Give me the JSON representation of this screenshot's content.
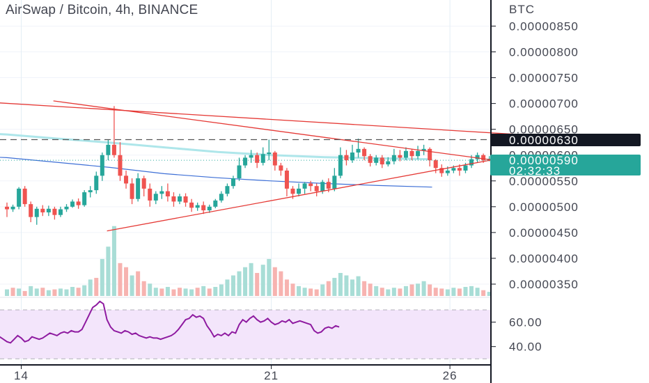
{
  "header": {
    "title": "AirSwap / Bitcoin, 4h, BINANCE"
  },
  "axis": {
    "unit": "BTC",
    "price_ticks": [
      "0.00000850",
      "0.00000800",
      "0.00000750",
      "0.00000700",
      "0.00000650",
      "0.00000600",
      "0.00000550",
      "0.00000500",
      "0.00000450",
      "0.00000400",
      "0.00000350"
    ],
    "rsi_ticks": [
      "60.00",
      "40.00"
    ],
    "date_ticks": [
      "14",
      "21",
      "26"
    ]
  },
  "tags": {
    "level_price": "0.00000630",
    "last_price": "0.00000590",
    "countdown": "02:32:33"
  },
  "colors": {
    "up": "#26a69a",
    "down": "#ef5350",
    "trendline": "#e53935",
    "ma_slow": "#aee6ea",
    "ma_fast": "#3d6fd6",
    "rsi_line": "#8e1aa0",
    "rsi_band": "#f3e5fb"
  },
  "chart_data": {
    "type": "candlestick",
    "price_range": [
      340,
      870
    ],
    "date_positions": [
      14,
      21,
      26
    ],
    "candles_start_date": 13.6,
    "candles_step_days": 0.1667,
    "candles": [
      [
        500,
        495,
        480,
        508
      ],
      [
        495,
        500,
        490,
        504
      ],
      [
        500,
        535,
        495,
        538
      ],
      [
        535,
        505,
        500,
        540
      ],
      [
        505,
        480,
        470,
        510
      ],
      [
        480,
        496,
        465,
        500
      ],
      [
        496,
        489,
        482,
        503
      ],
      [
        489,
        496,
        482,
        502
      ],
      [
        496,
        484,
        475,
        500
      ],
      [
        484,
        495,
        480,
        500
      ],
      [
        495,
        500,
        490,
        505
      ],
      [
        500,
        510,
        498,
        514
      ],
      [
        510,
        503,
        496,
        516
      ],
      [
        503,
        528,
        500,
        532
      ],
      [
        528,
        532,
        518,
        540
      ],
      [
        532,
        560,
        525,
        568
      ],
      [
        560,
        600,
        550,
        605
      ],
      [
        600,
        620,
        590,
        630
      ],
      [
        620,
        600,
        595,
        695
      ],
      [
        600,
        560,
        550,
        625
      ],
      [
        560,
        545,
        535,
        570
      ],
      [
        545,
        515,
        505,
        555
      ],
      [
        515,
        555,
        510,
        565
      ],
      [
        555,
        535,
        520,
        560
      ],
      [
        535,
        512,
        500,
        545
      ],
      [
        512,
        525,
        505,
        530
      ],
      [
        525,
        530,
        515,
        540
      ],
      [
        530,
        520,
        510,
        545
      ],
      [
        520,
        510,
        500,
        528
      ],
      [
        510,
        520,
        505,
        525
      ],
      [
        520,
        508,
        500,
        526
      ],
      [
        508,
        498,
        490,
        515
      ],
      [
        498,
        503,
        492,
        508
      ],
      [
        503,
        493,
        486,
        510
      ],
      [
        493,
        500,
        488,
        504
      ],
      [
        500,
        512,
        497,
        515
      ],
      [
        512,
        525,
        508,
        530
      ],
      [
        525,
        540,
        520,
        545
      ],
      [
        540,
        555,
        535,
        560
      ],
      [
        555,
        580,
        550,
        595
      ],
      [
        580,
        595,
        575,
        600
      ],
      [
        595,
        600,
        585,
        610
      ],
      [
        600,
        585,
        575,
        605
      ],
      [
        585,
        602,
        580,
        615
      ],
      [
        602,
        605,
        590,
        630
      ],
      [
        605,
        580,
        570,
        608
      ],
      [
        580,
        570,
        560,
        585
      ],
      [
        570,
        535,
        520,
        575
      ],
      [
        535,
        525,
        515,
        540
      ],
      [
        525,
        535,
        520,
        545
      ],
      [
        535,
        545,
        525,
        548
      ],
      [
        545,
        540,
        530,
        550
      ],
      [
        540,
        530,
        520,
        545
      ],
      [
        530,
        548,
        525,
        552
      ],
      [
        548,
        535,
        528,
        555
      ],
      [
        535,
        560,
        530,
        575
      ],
      [
        560,
        600,
        555,
        615
      ],
      [
        600,
        590,
        580,
        610
      ],
      [
        590,
        605,
        585,
        620
      ],
      [
        605,
        612,
        595,
        632
      ],
      [
        612,
        598,
        590,
        615
      ],
      [
        598,
        585,
        578,
        602
      ],
      [
        585,
        595,
        580,
        600
      ],
      [
        595,
        582,
        575,
        600
      ],
      [
        582,
        588,
        578,
        596
      ],
      [
        588,
        600,
        582,
        612
      ],
      [
        600,
        595,
        588,
        610
      ],
      [
        595,
        608,
        590,
        615
      ],
      [
        608,
        598,
        590,
        612
      ],
      [
        598,
        608,
        592,
        618
      ],
      [
        608,
        612,
        600,
        620
      ],
      [
        612,
        590,
        578,
        615
      ],
      [
        590,
        575,
        565,
        592
      ],
      [
        575,
        565,
        558,
        582
      ],
      [
        565,
        570,
        560,
        578
      ],
      [
        570,
        575,
        565,
        580
      ],
      [
        575,
        570,
        560,
        582
      ],
      [
        570,
        580,
        565,
        585
      ],
      [
        580,
        592,
        575,
        600
      ],
      [
        592,
        600,
        585,
        605
      ],
      [
        600,
        590,
        585,
        603
      ],
      [
        590,
        593,
        588,
        598
      ]
    ],
    "volumes": [
      [
        8,
        1
      ],
      [
        10,
        0
      ],
      [
        9,
        1
      ],
      [
        6,
        0
      ],
      [
        12,
        1
      ],
      [
        9,
        1
      ],
      [
        10,
        0
      ],
      [
        7,
        1
      ],
      [
        8,
        0
      ],
      [
        9,
        1
      ],
      [
        8,
        1
      ],
      [
        11,
        1
      ],
      [
        10,
        0
      ],
      [
        13,
        1
      ],
      [
        20,
        1
      ],
      [
        22,
        0
      ],
      [
        45,
        1
      ],
      [
        60,
        1
      ],
      [
        85,
        1
      ],
      [
        40,
        0
      ],
      [
        35,
        0
      ],
      [
        25,
        1
      ],
      [
        30,
        0
      ],
      [
        18,
        0
      ],
      [
        15,
        1
      ],
      [
        10,
        1
      ],
      [
        9,
        0
      ],
      [
        11,
        1
      ],
      [
        8,
        0
      ],
      [
        10,
        0
      ],
      [
        9,
        1
      ],
      [
        8,
        1
      ],
      [
        10,
        0
      ],
      [
        12,
        1
      ],
      [
        9,
        0
      ],
      [
        11,
        1
      ],
      [
        14,
        1
      ],
      [
        20,
        1
      ],
      [
        25,
        1
      ],
      [
        30,
        1
      ],
      [
        35,
        1
      ],
      [
        40,
        1
      ],
      [
        28,
        0
      ],
      [
        38,
        1
      ],
      [
        45,
        1
      ],
      [
        35,
        0
      ],
      [
        30,
        0
      ],
      [
        20,
        0
      ],
      [
        15,
        0
      ],
      [
        12,
        1
      ],
      [
        10,
        1
      ],
      [
        9,
        0
      ],
      [
        8,
        0
      ],
      [
        14,
        1
      ],
      [
        18,
        0
      ],
      [
        22,
        1
      ],
      [
        28,
        1
      ],
      [
        25,
        1
      ],
      [
        20,
        1
      ],
      [
        24,
        1
      ],
      [
        18,
        0
      ],
      [
        15,
        0
      ],
      [
        12,
        1
      ],
      [
        10,
        0
      ],
      [
        8,
        1
      ],
      [
        10,
        1
      ],
      [
        9,
        0
      ],
      [
        12,
        1
      ],
      [
        14,
        0
      ],
      [
        15,
        1
      ],
      [
        18,
        1
      ],
      [
        14,
        0
      ],
      [
        10,
        0
      ],
      [
        9,
        0
      ],
      [
        8,
        1
      ],
      [
        10,
        1
      ],
      [
        9,
        0
      ],
      [
        11,
        1
      ],
      [
        12,
        1
      ],
      [
        10,
        1
      ],
      [
        7,
        0
      ],
      [
        5,
        1
      ]
    ],
    "ma_slow": [
      [
        12.0,
        645
      ],
      [
        13.6,
        640
      ],
      [
        15.0,
        632
      ],
      [
        16.5,
        624
      ],
      [
        18.0,
        615
      ],
      [
        19.5,
        606
      ],
      [
        21.0,
        600
      ],
      [
        22.5,
        596
      ],
      [
        24.0,
        594
      ],
      [
        25.5,
        592
      ]
    ],
    "ma_fast": [
      [
        12.0,
        600
      ],
      [
        13.6,
        595
      ],
      [
        15.0,
        586
      ],
      [
        16.5,
        576
      ],
      [
        18.0,
        564
      ],
      [
        19.5,
        556
      ],
      [
        21.0,
        550
      ],
      [
        22.5,
        545
      ],
      [
        24.0,
        541
      ],
      [
        25.5,
        538
      ]
    ],
    "trendlines": [
      [
        [
          12.0,
          707
        ],
        [
          27.9,
          640
        ]
      ],
      [
        [
          14.9,
          705
        ],
        [
          27.9,
          584
        ]
      ],
      [
        [
          16.4,
          453
        ],
        [
          27.9,
          600
        ]
      ]
    ],
    "level_line": 630,
    "last_price": 590,
    "rsi_range": [
      29,
      78
    ],
    "rsi_levels": [
      70,
      30
    ],
    "rsi": [
      [
        13.0,
        42
      ],
      [
        13.1,
        39
      ],
      [
        13.2,
        44
      ],
      [
        13.3,
        46
      ],
      [
        13.4,
        48
      ],
      [
        13.5,
        46
      ],
      [
        13.6,
        44
      ],
      [
        13.7,
        43
      ],
      [
        13.8,
        46
      ],
      [
        13.9,
        49
      ],
      [
        14.0,
        47
      ],
      [
        14.1,
        44
      ],
      [
        14.2,
        45
      ],
      [
        14.3,
        48
      ],
      [
        14.4,
        47
      ],
      [
        14.5,
        46
      ],
      [
        14.6,
        47
      ],
      [
        14.7,
        49
      ],
      [
        14.8,
        51
      ],
      [
        14.9,
        50
      ],
      [
        15.0,
        49
      ],
      [
        15.1,
        51
      ],
      [
        15.2,
        52
      ],
      [
        15.3,
        51
      ],
      [
        15.4,
        53
      ],
      [
        15.5,
        52
      ],
      [
        15.6,
        52
      ],
      [
        15.7,
        54
      ],
      [
        15.8,
        60
      ],
      [
        15.9,
        66
      ],
      [
        16.0,
        72
      ],
      [
        16.1,
        74
      ],
      [
        16.2,
        77
      ],
      [
        16.3,
        75
      ],
      [
        16.4,
        62
      ],
      [
        16.5,
        56
      ],
      [
        16.6,
        53
      ],
      [
        16.7,
        52
      ],
      [
        16.8,
        51
      ],
      [
        16.9,
        53
      ],
      [
        17.0,
        52
      ],
      [
        17.1,
        50
      ],
      [
        17.2,
        51
      ],
      [
        17.3,
        49
      ],
      [
        17.4,
        48
      ],
      [
        17.5,
        47
      ],
      [
        17.6,
        48
      ],
      [
        17.7,
        47
      ],
      [
        17.8,
        47
      ],
      [
        17.9,
        46
      ],
      [
        18.0,
        47
      ],
      [
        18.1,
        48
      ],
      [
        18.2,
        49
      ],
      [
        18.3,
        51
      ],
      [
        18.4,
        54
      ],
      [
        18.5,
        58
      ],
      [
        18.6,
        62
      ],
      [
        18.7,
        63
      ],
      [
        18.8,
        66
      ],
      [
        18.9,
        64
      ],
      [
        19.0,
        65
      ],
      [
        19.1,
        63
      ],
      [
        19.2,
        57
      ],
      [
        19.3,
        53
      ],
      [
        19.4,
        48
      ],
      [
        19.5,
        50
      ],
      [
        19.6,
        49
      ],
      [
        19.7,
        51
      ],
      [
        19.8,
        49
      ],
      [
        19.9,
        52
      ],
      [
        20.0,
        51
      ],
      [
        20.1,
        58
      ],
      [
        20.2,
        62
      ],
      [
        20.3,
        60
      ],
      [
        20.4,
        63
      ],
      [
        20.5,
        65
      ],
      [
        20.6,
        62
      ],
      [
        20.7,
        60
      ],
      [
        20.8,
        61
      ],
      [
        20.9,
        63
      ],
      [
        21.0,
        60
      ],
      [
        21.1,
        58
      ],
      [
        21.2,
        59
      ],
      [
        21.3,
        61
      ],
      [
        21.4,
        60
      ],
      [
        21.5,
        62
      ],
      [
        21.6,
        59
      ],
      [
        21.7,
        60
      ],
      [
        21.8,
        61
      ],
      [
        21.9,
        60
      ],
      [
        22.0,
        59
      ],
      [
        22.1,
        58
      ],
      [
        22.2,
        53
      ],
      [
        22.3,
        51
      ],
      [
        22.4,
        52
      ],
      [
        22.5,
        55
      ],
      [
        22.6,
        56
      ],
      [
        22.7,
        55
      ],
      [
        22.8,
        57
      ],
      [
        22.9,
        56
      ]
    ]
  }
}
